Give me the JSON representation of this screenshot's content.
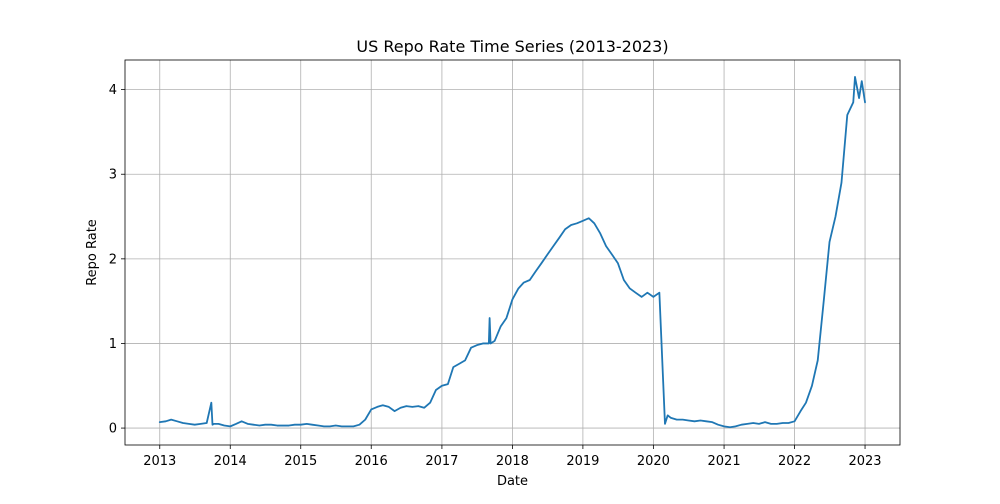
{
  "chart_data": {
    "type": "line",
    "title": "US Repo Rate Time Series (2013-2023)",
    "xlabel": "Date",
    "ylabel": "Repo Rate",
    "xlim": [
      "2012-07-05",
      "2023-07-01"
    ],
    "ylim": [
      -0.2,
      4.35
    ],
    "grid": true,
    "x_tick_labels": [
      "2013",
      "2014",
      "2015",
      "2016",
      "2017",
      "2018",
      "2019",
      "2020",
      "2021",
      "2022",
      "2023"
    ],
    "x_tick_dates": [
      "2013-01-01",
      "2014-01-01",
      "2015-01-01",
      "2016-01-01",
      "2017-01-01",
      "2018-01-01",
      "2019-01-01",
      "2020-01-01",
      "2021-01-01",
      "2022-01-01",
      "2023-01-01"
    ],
    "y_ticks": [
      0,
      1,
      2,
      3,
      4
    ],
    "y_tick_labels": [
      "0",
      "1",
      "2",
      "3",
      "4"
    ],
    "series": [
      {
        "color": "#1f77b4",
        "x": [
          "2013-01-01",
          "2013-02-01",
          "2013-03-01",
          "2013-04-01",
          "2013-05-01",
          "2013-06-01",
          "2013-07-01",
          "2013-08-01",
          "2013-09-01",
          "2013-09-25",
          "2013-10-01",
          "2013-10-08",
          "2013-11-01",
          "2013-12-01",
          "2014-01-01",
          "2014-02-01",
          "2014-03-01",
          "2014-04-01",
          "2014-05-01",
          "2014-06-01",
          "2014-07-01",
          "2014-08-01",
          "2014-09-01",
          "2014-10-01",
          "2014-11-01",
          "2014-12-01",
          "2015-01-01",
          "2015-02-01",
          "2015-03-01",
          "2015-04-01",
          "2015-05-01",
          "2015-06-01",
          "2015-07-01",
          "2015-08-01",
          "2015-09-01",
          "2015-10-01",
          "2015-11-01",
          "2015-12-01",
          "2016-01-01",
          "2016-02-01",
          "2016-03-01",
          "2016-04-01",
          "2016-05-01",
          "2016-06-01",
          "2016-07-01",
          "2016-08-01",
          "2016-09-01",
          "2016-10-01",
          "2016-11-01",
          "2016-12-01",
          "2017-01-01",
          "2017-02-01",
          "2017-03-01",
          "2017-04-01",
          "2017-05-01",
          "2017-06-01",
          "2017-07-01",
          "2017-08-01",
          "2017-09-01",
          "2017-09-05",
          "2017-09-10",
          "2017-10-01",
          "2017-11-01",
          "2017-12-01",
          "2018-01-01",
          "2018-02-01",
          "2018-03-01",
          "2018-04-01",
          "2018-05-01",
          "2018-06-01",
          "2018-07-01",
          "2018-08-01",
          "2018-09-01",
          "2018-10-01",
          "2018-11-01",
          "2018-12-01",
          "2019-01-01",
          "2019-02-01",
          "2019-03-01",
          "2019-04-01",
          "2019-05-01",
          "2019-06-01",
          "2019-07-01",
          "2019-08-01",
          "2019-09-01",
          "2019-10-01",
          "2019-11-01",
          "2019-12-01",
          "2020-01-01",
          "2020-02-01",
          "2020-03-01",
          "2020-03-15",
          "2020-04-01",
          "2020-05-01",
          "2020-06-01",
          "2020-07-01",
          "2020-08-01",
          "2020-09-01",
          "2020-10-01",
          "2020-11-01",
          "2020-12-01",
          "2021-01-01",
          "2021-02-01",
          "2021-03-01",
          "2021-04-01",
          "2021-05-01",
          "2021-06-01",
          "2021-07-01",
          "2021-08-01",
          "2021-09-01",
          "2021-10-01",
          "2021-11-01",
          "2021-12-01",
          "2022-01-01",
          "2022-02-01",
          "2022-03-01",
          "2022-04-01",
          "2022-05-01",
          "2022-06-01",
          "2022-07-01",
          "2022-08-01",
          "2022-09-01",
          "2022-10-01",
          "2022-11-01",
          "2022-11-10",
          "2022-12-01",
          "2022-12-15",
          "2023-01-01"
        ],
        "values": [
          0.07,
          0.08,
          0.1,
          0.08,
          0.06,
          0.05,
          0.04,
          0.05,
          0.06,
          0.3,
          0.04,
          0.05,
          0.05,
          0.03,
          0.02,
          0.05,
          0.08,
          0.05,
          0.04,
          0.03,
          0.04,
          0.04,
          0.03,
          0.03,
          0.03,
          0.04,
          0.04,
          0.05,
          0.04,
          0.03,
          0.02,
          0.02,
          0.03,
          0.02,
          0.02,
          0.02,
          0.04,
          0.1,
          0.22,
          0.25,
          0.27,
          0.25,
          0.2,
          0.24,
          0.26,
          0.25,
          0.26,
          0.24,
          0.3,
          0.45,
          0.5,
          0.52,
          0.72,
          0.76,
          0.8,
          0.95,
          0.98,
          1.0,
          1.0,
          1.3,
          1.0,
          1.03,
          1.2,
          1.3,
          1.52,
          1.65,
          1.72,
          1.75,
          1.85,
          1.95,
          2.05,
          2.15,
          2.25,
          2.35,
          2.4,
          2.42,
          2.45,
          2.48,
          2.42,
          2.3,
          2.15,
          2.05,
          1.95,
          1.75,
          1.65,
          1.6,
          1.55,
          1.6,
          1.55,
          1.6,
          0.05,
          0.15,
          0.12,
          0.1,
          0.1,
          0.09,
          0.08,
          0.09,
          0.08,
          0.07,
          0.04,
          0.02,
          0.01,
          0.02,
          0.04,
          0.05,
          0.06,
          0.05,
          0.07,
          0.05,
          0.05,
          0.06,
          0.06,
          0.08,
          0.2,
          0.3,
          0.5,
          0.8,
          1.5,
          2.2,
          2.5,
          2.9,
          3.7,
          3.85,
          4.15,
          3.9,
          4.1,
          3.85
        ]
      }
    ]
  }
}
